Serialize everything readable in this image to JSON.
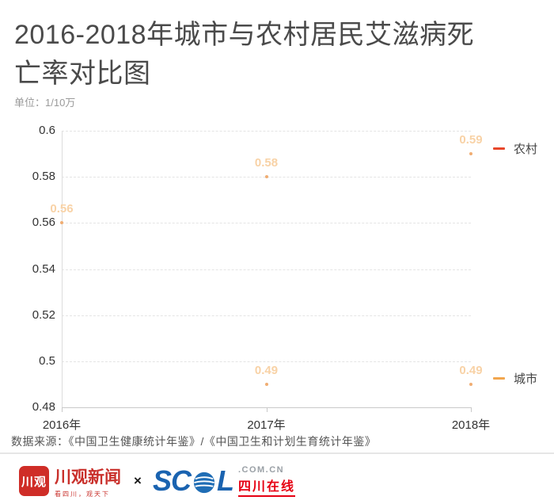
{
  "header": {
    "title": "2016-2018年城市与农村居民艾滋病死亡率对比图",
    "unit_label": "单位：1/10万"
  },
  "chart_data": {
    "type": "line",
    "title": "2016-2018年城市与农村居民艾滋病死亡率对比图",
    "unit": "1/10万",
    "categories": [
      "2016年",
      "2017年",
      "2018年"
    ],
    "series": [
      {
        "name": "农村",
        "values": [
          0.56,
          0.58,
          0.59
        ],
        "legend_color": "#e8472b",
        "point_color": "#f0ad72",
        "label_color": "#f8d2a6"
      },
      {
        "name": "城市",
        "values": [
          null,
          0.49,
          0.49
        ],
        "legend_color": "#f2a64e",
        "point_color": "#f0ad72",
        "label_color": "#f8d2a6"
      }
    ],
    "ylim": [
      0.48,
      0.6
    ],
    "y_ticks": [
      0.48,
      0.5,
      0.52,
      0.54,
      0.56,
      0.58,
      0.6
    ],
    "grid": true,
    "gridline_style": "dashed",
    "legend_position": "right-end-of-series"
  },
  "footer": {
    "source": "数据来源：《中国卫生健康统计年鉴》/《中国卫生和计划生育统计年鉴》",
    "logos": {
      "chuanguan_badge": "川观",
      "chuanguan_name": "川观新闻",
      "chuanguan_slogan": "看四川，观天下",
      "separator": "×",
      "scol_sc": "SC",
      "scol_l": "L",
      "scol_domain": ".COM.CN",
      "scol_site_name": "四川在线",
      "chuanguan_red": "#c9302b",
      "scol_blue": "#1a63b0",
      "scol_red": "#e60012"
    }
  }
}
